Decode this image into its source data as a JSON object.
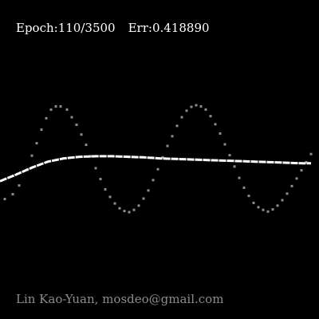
{
  "status": {
    "epoch_label": "Epoch:",
    "epoch_current": "110",
    "epoch_total": "3500",
    "error_label": "Err:",
    "error_value": "0.418890"
  },
  "credit": "Lin Kao-Yuan, mosdeo@gmail.com",
  "colors": {
    "background": "#000000",
    "target_points": "#8c8c8c",
    "prediction_curve": "#ffffff",
    "status_text": "#ffffff",
    "credit_text": "#8c8c8c"
  },
  "chart_data": {
    "type": "scatter",
    "title": "",
    "xlabel": "",
    "ylabel": "",
    "xlim": [
      0,
      1
    ],
    "ylim": [
      -1.6,
      1.6
    ],
    "grid": false,
    "axes_visible": false,
    "series": [
      {
        "role": "target",
        "style": "dots",
        "x": [
          0.015,
          0.04,
          0.06,
          0.085,
          0.1,
          0.115,
          0.13,
          0.145,
          0.16,
          0.175,
          0.19,
          0.21,
          0.225,
          0.24,
          0.255,
          0.27,
          0.285,
          0.3,
          0.315,
          0.33,
          0.345,
          0.36,
          0.375,
          0.39,
          0.405,
          0.42,
          0.435,
          0.45,
          0.465,
          0.48,
          0.495,
          0.51,
          0.525,
          0.54,
          0.555,
          0.57,
          0.585,
          0.6,
          0.615,
          0.63,
          0.645,
          0.66,
          0.675,
          0.69,
          0.705,
          0.72,
          0.735,
          0.75,
          0.765,
          0.78,
          0.795,
          0.81,
          0.825,
          0.84,
          0.855,
          0.87,
          0.885,
          0.9,
          0.915,
          0.93,
          0.945,
          0.96,
          0.975
        ],
        "y": [
          -0.73,
          -0.64,
          -0.48,
          -0.19,
          0.07,
          0.3,
          0.55,
          0.76,
          0.92,
          0.98,
          0.98,
          0.92,
          0.78,
          0.64,
          0.46,
          0.27,
          0.06,
          -0.16,
          -0.36,
          -0.55,
          -0.69,
          -0.81,
          -0.9,
          -0.95,
          -0.97,
          -0.93,
          -0.85,
          -0.72,
          -0.57,
          -0.38,
          -0.18,
          0.04,
          0.25,
          0.43,
          0.62,
          0.78,
          0.9,
          0.97,
          1.0,
          0.98,
          0.92,
          0.8,
          0.65,
          0.48,
          0.28,
          0.08,
          -0.13,
          -0.34,
          -0.52,
          -0.67,
          -0.8,
          -0.88,
          -0.93,
          -0.96,
          -0.92,
          -0.85,
          -0.75,
          -0.63,
          -0.49,
          -0.35,
          -0.2,
          -0.05,
          0.1
        ]
      },
      {
        "role": "prediction",
        "style": "line",
        "x": [
          0.0,
          0.05,
          0.1,
          0.15,
          0.2,
          0.25,
          0.3,
          0.35,
          0.4,
          0.45,
          0.5,
          0.55,
          0.6,
          0.65,
          0.7,
          0.75,
          0.8,
          0.85,
          0.9,
          0.95,
          0.975
        ],
        "y": [
          -0.4,
          -0.28,
          -0.15,
          -0.04,
          0.02,
          0.05,
          0.06,
          0.06,
          0.05,
          0.04,
          0.02,
          0.01,
          0.0,
          -0.01,
          -0.02,
          -0.03,
          -0.04,
          -0.05,
          -0.06,
          -0.07,
          -0.07
        ]
      }
    ]
  }
}
